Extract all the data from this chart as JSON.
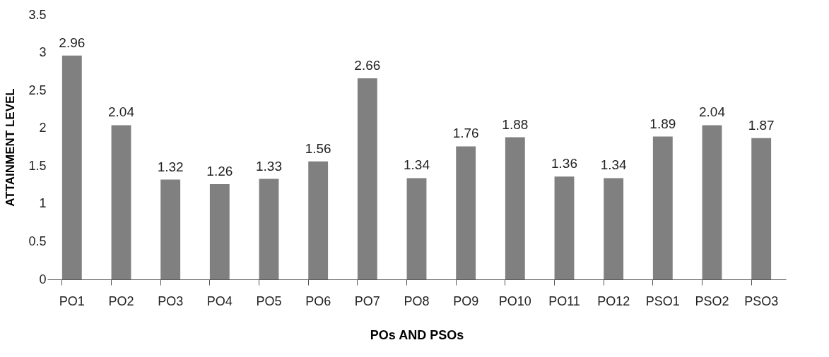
{
  "chart_data": {
    "type": "bar",
    "xlabel": "POs AND PSOs",
    "ylabel": "ATTAINMENT LEVEL",
    "categories": [
      "PO1",
      "PO2",
      "PO3",
      "PO4",
      "PO5",
      "PO6",
      "PO7",
      "PO8",
      "PO9",
      "PO10",
      "PO11",
      "PO12",
      "PSO1",
      "PSO2",
      "PSO3"
    ],
    "values": [
      2.96,
      2.04,
      1.32,
      1.26,
      1.33,
      1.56,
      2.66,
      1.34,
      1.76,
      1.88,
      1.36,
      1.34,
      1.89,
      2.04,
      1.87
    ],
    "color": "#808080",
    "ylim": [
      0,
      3.5
    ],
    "yticks": [
      0,
      0.5,
      1,
      1.5,
      2,
      2.5,
      3,
      3.5
    ],
    "grid": false,
    "data_labels": true
  }
}
